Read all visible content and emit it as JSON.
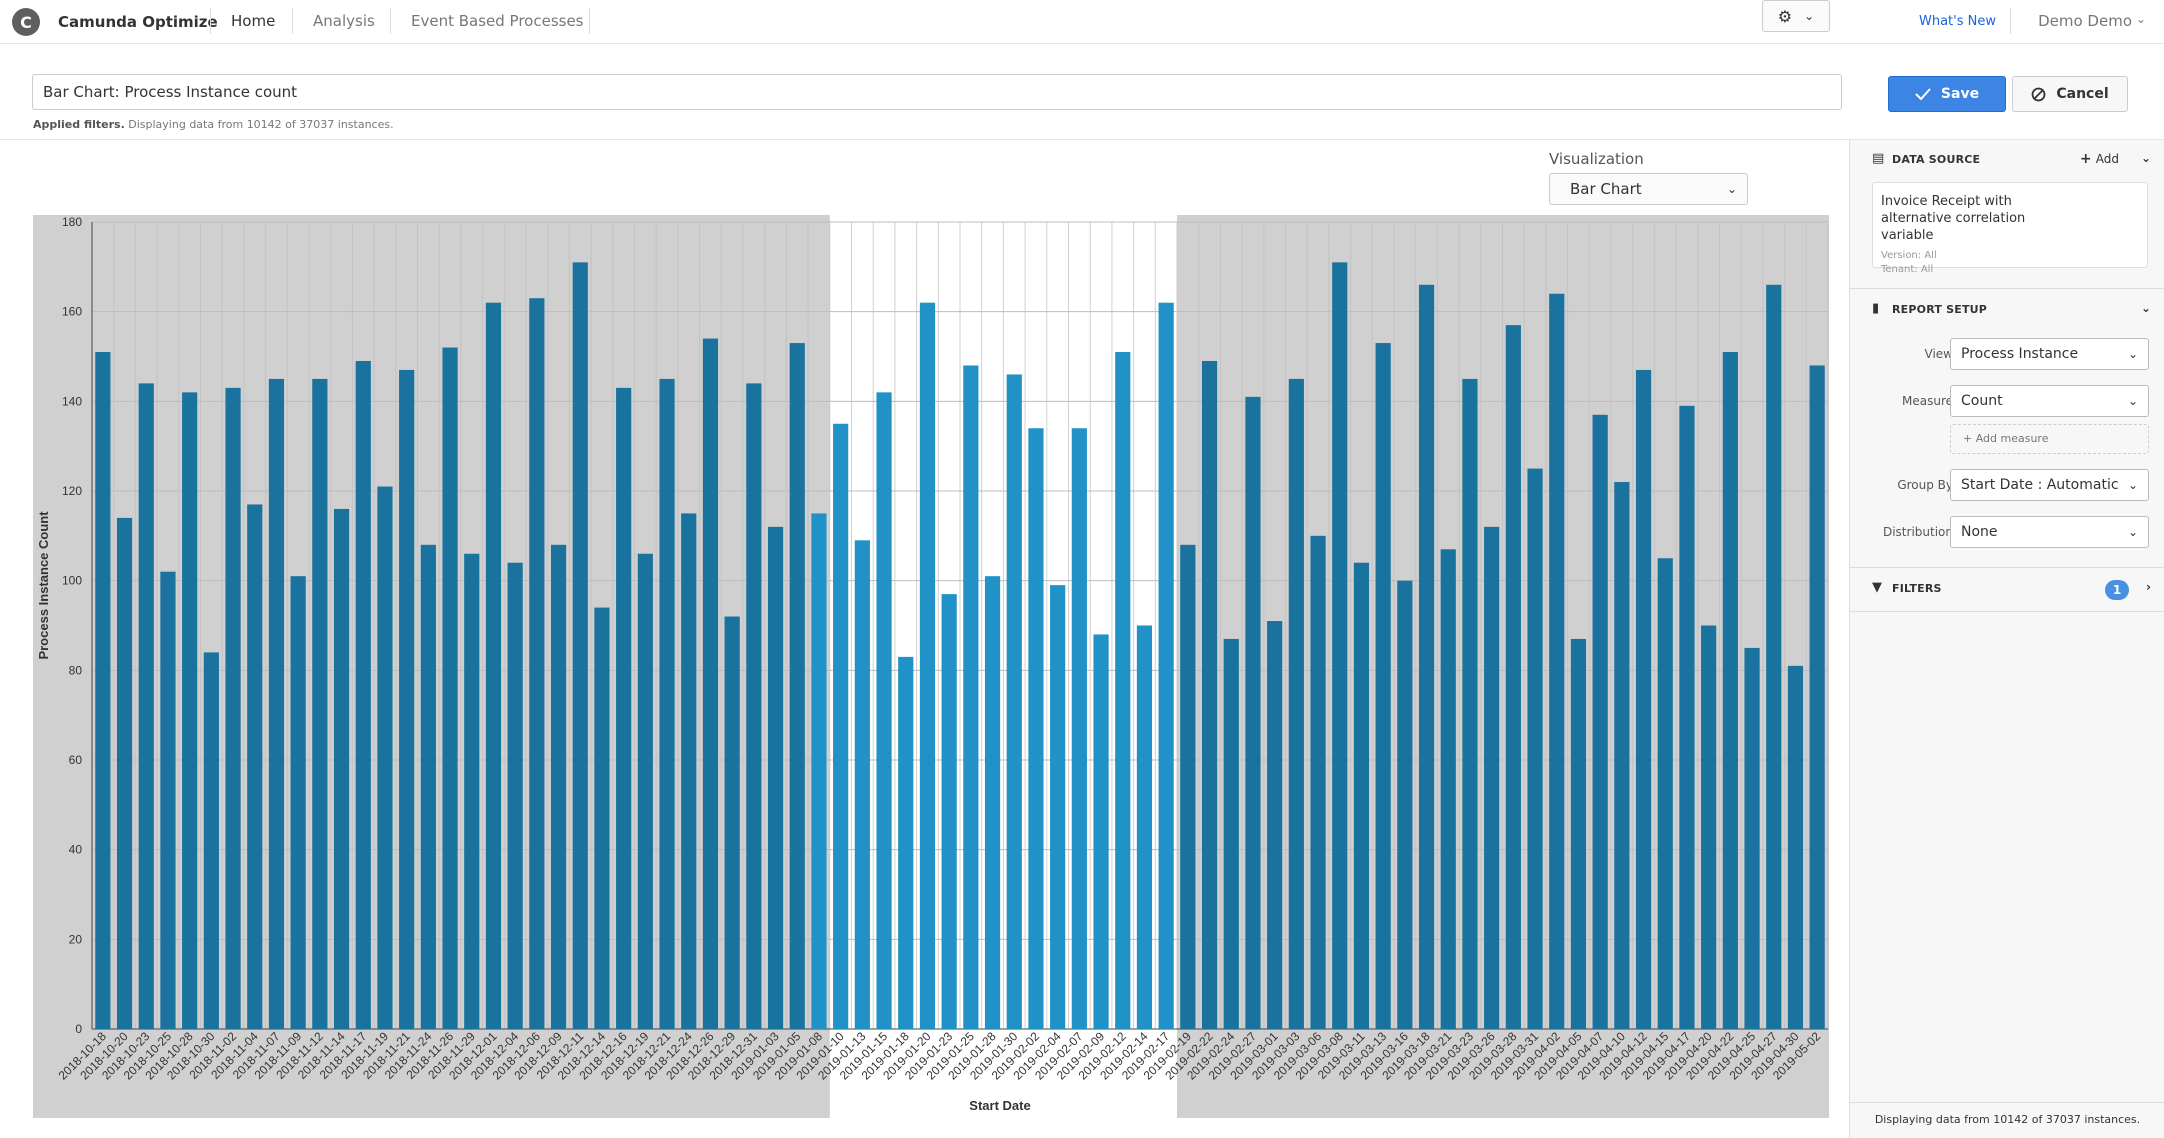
{
  "app": {
    "logo_letter": "C",
    "name": "Camunda Optimize",
    "nav": [
      {
        "label": "Home",
        "active": true
      },
      {
        "label": "Analysis",
        "active": false
      },
      {
        "label": "Event Based Processes",
        "active": false
      }
    ],
    "whats_new": "What's New",
    "user": "Demo Demo"
  },
  "report": {
    "name": "Bar Chart: Process Instance count",
    "filters_applied": "Applied filters.",
    "filters_note": "Displaying data from 10142 of 37037 instances.",
    "save_label": "Save",
    "cancel_label": "Cancel"
  },
  "visualization": {
    "label": "Visualization",
    "selected": "Bar Chart"
  },
  "sidebar": {
    "data_source": {
      "title": "DATA SOURCE",
      "add_label": "Add",
      "process_name": "Invoice Receipt with alternative correlation variable",
      "version": "Version: All",
      "tenant": "Tenant: All"
    },
    "report_setup": {
      "title": "REPORT SETUP",
      "view_label": "View",
      "view_value": "Process Instance",
      "measure_label": "Measure",
      "measure_value": "Count",
      "add_measure": "+ Add measure",
      "group_by_label": "Group By",
      "group_by_value": "Start Date : Automatic",
      "distribution_label": "Distribution",
      "distribution_value": "None"
    },
    "filters": {
      "title": "FILTERS",
      "count": "1"
    },
    "footer": "Displaying data from 10142 of 37037 instances."
  },
  "colors": {
    "bar": "#1a739f",
    "bar_highlight": "#2092c7",
    "shaded_region": "#d0d0d0",
    "accent": "#3c85e5"
  },
  "chart_data": {
    "type": "bar",
    "xlabel": "Start Date",
    "ylabel": "Process Instance Count",
    "ylim": [
      0,
      180
    ],
    "yticks": [
      0,
      20,
      40,
      60,
      80,
      100,
      120,
      140,
      160,
      180
    ],
    "grid": true,
    "highlight_range": [
      "2019-01-08",
      "2019-02-17"
    ],
    "categories": [
      "2018-10-18",
      "2018-10-20",
      "2018-10-23",
      "2018-10-25",
      "2018-10-28",
      "2018-10-30",
      "2018-11-02",
      "2018-11-04",
      "2018-11-07",
      "2018-11-09",
      "2018-11-12",
      "2018-11-14",
      "2018-11-17",
      "2018-11-19",
      "2018-11-21",
      "2018-11-24",
      "2018-11-26",
      "2018-11-29",
      "2018-12-01",
      "2018-12-04",
      "2018-12-06",
      "2018-12-09",
      "2018-12-11",
      "2018-12-14",
      "2018-12-16",
      "2018-12-19",
      "2018-12-21",
      "2018-12-24",
      "2018-12-26",
      "2018-12-29",
      "2018-12-31",
      "2019-01-03",
      "2019-01-05",
      "2019-01-08",
      "2019-01-10",
      "2019-01-13",
      "2019-01-15",
      "2019-01-18",
      "2019-01-20",
      "2019-01-23",
      "2019-01-25",
      "2019-01-28",
      "2019-01-30",
      "2019-02-02",
      "2019-02-04",
      "2019-02-07",
      "2019-02-09",
      "2019-02-12",
      "2019-02-14",
      "2019-02-17",
      "2019-02-19",
      "2019-02-22",
      "2019-02-24",
      "2019-02-27",
      "2019-03-01",
      "2019-03-03",
      "2019-03-06",
      "2019-03-08",
      "2019-03-11",
      "2019-03-13",
      "2019-03-16",
      "2019-03-18",
      "2019-03-21",
      "2019-03-23",
      "2019-03-26",
      "2019-03-28",
      "2019-03-31",
      "2019-04-02",
      "2019-04-05",
      "2019-04-07",
      "2019-04-10",
      "2019-04-12",
      "2019-04-15",
      "2019-04-17",
      "2019-04-20",
      "2019-04-22",
      "2019-04-25",
      "2019-04-27",
      "2019-04-30",
      "2019-05-02"
    ],
    "values": [
      151,
      114,
      144,
      102,
      142,
      84,
      143,
      117,
      145,
      101,
      145,
      116,
      149,
      121,
      147,
      108,
      152,
      106,
      162,
      104,
      163,
      108,
      171,
      94,
      143,
      106,
      145,
      115,
      154,
      92,
      144,
      112,
      153,
      115,
      135,
      109,
      142,
      83,
      162,
      97,
      148,
      101,
      146,
      134,
      99,
      134,
      88,
      151,
      90,
      162,
      108,
      149,
      87,
      141,
      91,
      145,
      110,
      171,
      104,
      153,
      100,
      166,
      107,
      145,
      112,
      157,
      125,
      164,
      87,
      137,
      122,
      147,
      105,
      139,
      90,
      151,
      85,
      166,
      81,
      148
    ]
  }
}
